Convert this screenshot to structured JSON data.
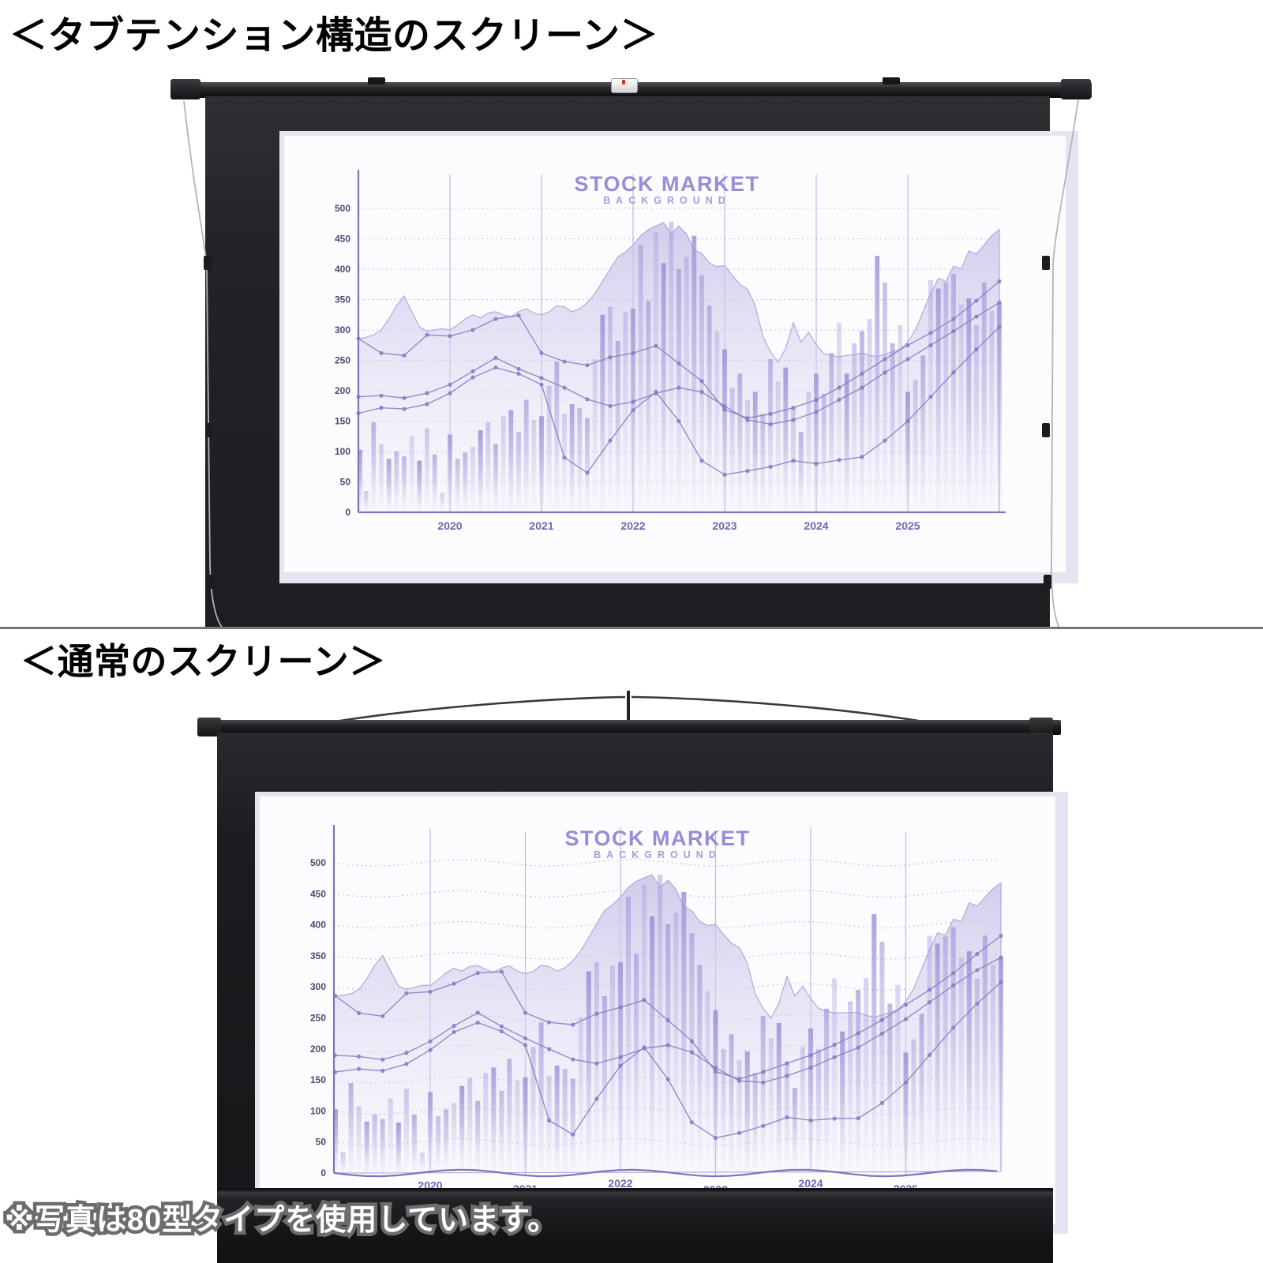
{
  "sections": [
    {
      "title": "＜タブテンション構造のスクリーン＞",
      "screen_type": "tab-tension",
      "surface": "flat",
      "wavy": false
    },
    {
      "title": "＜通常のスクリーン＞",
      "screen_type": "normal",
      "surface": "wavy",
      "wavy": true
    }
  ],
  "note": "※写真は80型タイプを使用しています。",
  "chart_data": {
    "type": "mixed",
    "title": "STOCK MARKET",
    "subtitle": "BACKGROUND",
    "x_years": [
      "2020",
      "2021",
      "2022",
      "2023",
      "2024",
      "2025"
    ],
    "x_range_years": [
      2019,
      2026
    ],
    "ylim": [
      0,
      500
    ],
    "yticks": [
      0,
      50,
      100,
      150,
      200,
      250,
      300,
      350,
      400,
      450,
      500
    ],
    "grid": "dotted horizontal lines at each 50, solid vertical lines at each year",
    "legend": "none",
    "area_series": {
      "name": "index-area",
      "monthly_values": [
        285,
        288,
        292,
        300,
        318,
        340,
        356,
        330,
        305,
        298,
        300,
        302,
        300,
        308,
        318,
        325,
        320,
        328,
        330,
        325,
        322,
        330,
        335,
        328,
        325,
        330,
        340,
        338,
        330,
        335,
        345,
        360,
        380,
        400,
        420,
        428,
        440,
        455,
        465,
        471,
        477,
        458,
        471,
        458,
        432,
        426,
        410,
        404,
        406,
        390,
        375,
        367,
        340,
        290,
        264,
        247,
        270,
        312,
        280,
        296,
        276,
        261,
        258,
        256,
        258,
        260,
        262,
        258,
        256,
        260,
        264,
        268,
        280,
        300,
        330,
        360,
        385,
        380,
        405,
        400,
        430,
        425,
        440,
        455,
        465
      ]
    },
    "bar_series": {
      "name": "volume-bars",
      "monthly_values": [
        103,
        35,
        148,
        112,
        88,
        100,
        92,
        125,
        85,
        138,
        95,
        32,
        128,
        88,
        98,
        108,
        135,
        148,
        112,
        158,
        168,
        132,
        185,
        152,
        158,
        208,
        248,
        162,
        178,
        172,
        155,
        252,
        325,
        338,
        282,
        330,
        335,
        440,
        348,
        460,
        410,
        478,
        400,
        420,
        455,
        390,
        340,
        298,
        268,
        205,
        228,
        185,
        198,
        162,
        252,
        215,
        238,
        172,
        132,
        198,
        228,
        195,
        262,
        312,
        228,
        278,
        298,
        318,
        422,
        378,
        278,
        308,
        198,
        218,
        258,
        382,
        368,
        378,
        392,
        342,
        352,
        308,
        378,
        332,
        345
      ]
    },
    "line_series": [
      {
        "name": "line-upper",
        "quarterly_values": [
          286,
          262,
          258,
          292,
          290,
          300,
          318,
          324,
          262,
          248,
          242,
          255,
          262,
          274,
          245,
          216,
          169,
          155,
          162,
          172,
          185,
          205,
          228,
          252,
          275,
          295,
          318,
          348,
          380
        ]
      },
      {
        "name": "line-middle",
        "quarterly_values": [
          190,
          192,
          188,
          196,
          210,
          232,
          254,
          236,
          221,
          205,
          186,
          175,
          182,
          196,
          205,
          198,
          175,
          152,
          145,
          152,
          165,
          185,
          205,
          230,
          252,
          275,
          298,
          322,
          345
        ]
      },
      {
        "name": "line-lower",
        "quarterly_values": [
          163,
          172,
          170,
          178,
          196,
          222,
          238,
          228,
          210,
          90,
          65,
          118,
          168,
          198,
          150,
          85,
          62,
          68,
          75,
          85,
          80,
          86,
          91,
          118,
          150,
          190,
          230,
          268,
          305
        ]
      }
    ],
    "colors": {
      "bar": "#9f92d8",
      "area_fill": "#cfc8ec",
      "area_stroke": "#b2a9de",
      "line": "#897ec7",
      "axis": "#7d74bd",
      "tick_label": "#4f4a6e",
      "year_label": "#6f66b0",
      "title": "#998dd5",
      "grid": "#a59dd4"
    }
  },
  "colors": {
    "page_bg": "#ffffff",
    "divider": "#767676",
    "frame_black": "#232226",
    "note_fill": "#ffffff",
    "note_outline": "#6c6c6c"
  }
}
